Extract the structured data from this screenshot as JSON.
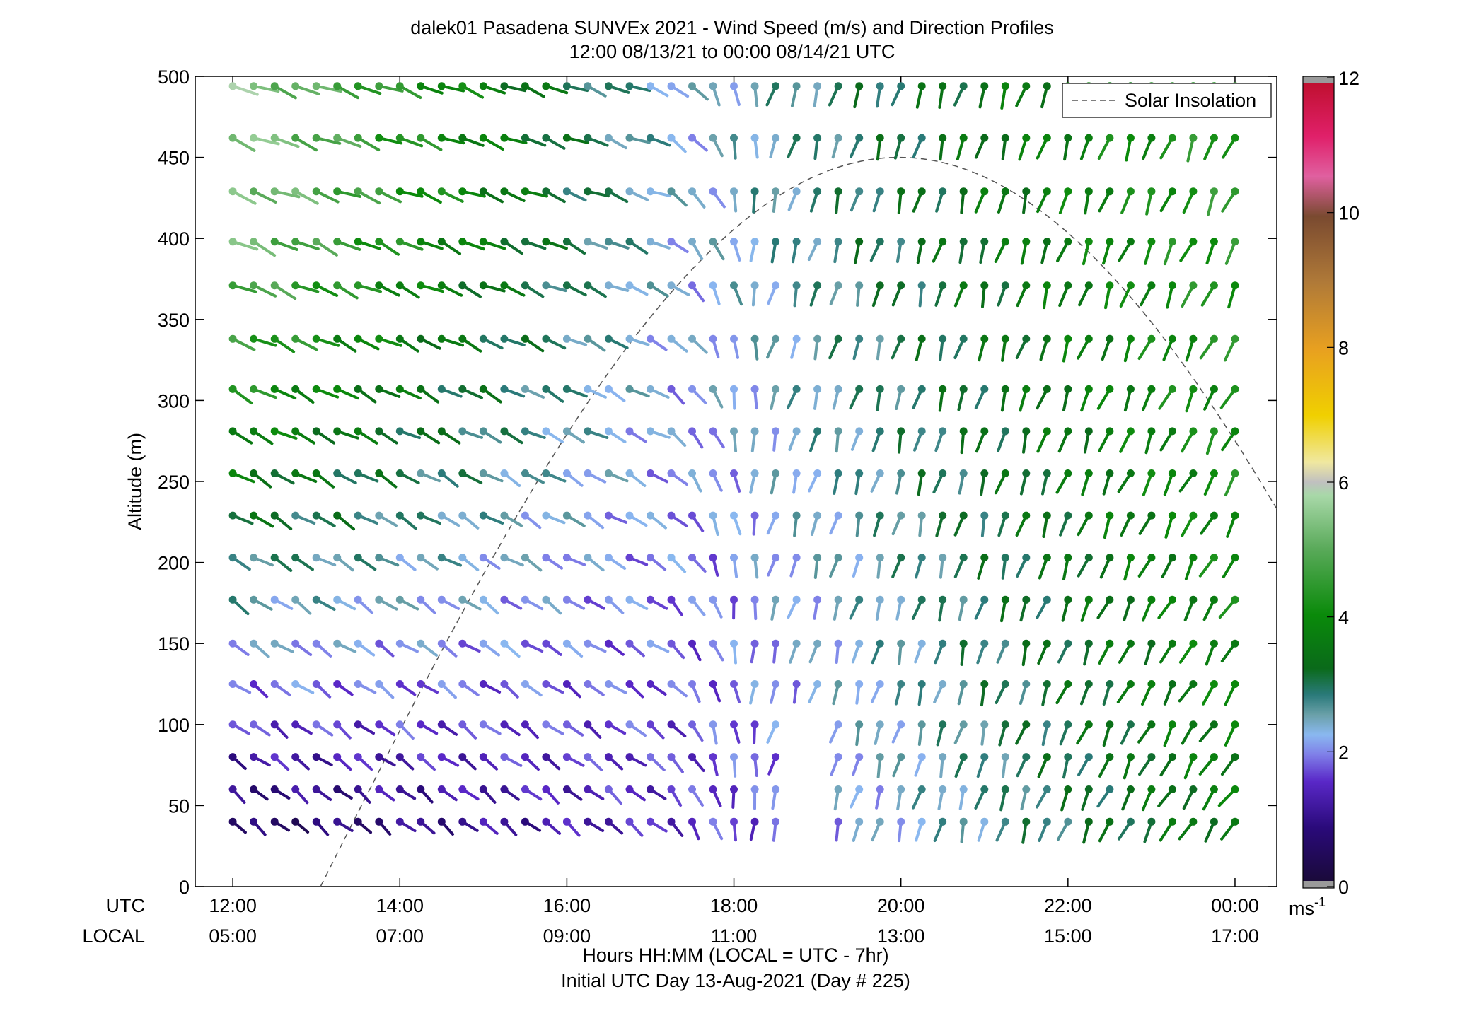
{
  "chart_data": {
    "type": "wind-barb-profile",
    "title_line1": "dalek01 Pasadena SUNVEx 2021 - Wind Speed (m/s) and Direction Profiles",
    "title_line2": "12:00 08/13/21 to 00:00 08/14/21  UTC",
    "ylabel": "Altitude (m)",
    "xlabel_line1": "Hours HH:MM  (LOCAL = UTC - 7hr)",
    "xlabel_line2": "Initial UTC Day 13-Aug-2021 (Day # 225)",
    "row_label_utc": "UTC",
    "row_label_local": "LOCAL",
    "ylim": [
      0,
      500
    ],
    "y_ticks": [
      0,
      50,
      100,
      150,
      200,
      250,
      300,
      350,
      400,
      450,
      500
    ],
    "y_tick_labels": [
      "0",
      "50",
      "100",
      "150",
      "200",
      "250",
      "300",
      "350",
      "400",
      "450",
      "500"
    ],
    "xlim_hours": [
      11.55,
      24.5
    ],
    "x_ticks_hours": [
      12,
      14,
      16,
      18,
      20,
      22,
      24
    ],
    "x_tick_labels_utc": [
      "12:00",
      "14:00",
      "16:00",
      "18:00",
      "20:00",
      "22:00",
      "00:00"
    ],
    "x_tick_labels_local": [
      "05:00",
      "07:00",
      "09:00",
      "11:00",
      "13:00",
      "15:00",
      "17:00"
    ],
    "colorbar": {
      "range": [
        0,
        12
      ],
      "ticks": [
        0,
        2,
        4,
        6,
        8,
        10,
        12
      ],
      "tick_labels": [
        "0",
        "2",
        "4",
        "6",
        "8",
        "10",
        "12"
      ],
      "unit_base": "ms",
      "unit_exp": "-1",
      "stops": [
        [
          0.0,
          "#1a0a3a"
        ],
        [
          0.8,
          "#2a0a7a"
        ],
        [
          1.5,
          "#5a28c8"
        ],
        [
          1.9,
          "#7f7fe8"
        ],
        [
          2.2,
          "#8ab8f0"
        ],
        [
          2.5,
          "#6aa0a8"
        ],
        [
          2.8,
          "#2a7a7a"
        ],
        [
          3.2,
          "#0a6a1a"
        ],
        [
          4.0,
          "#0a8a0a"
        ],
        [
          5.0,
          "#5aaa5a"
        ],
        [
          5.8,
          "#a8d8a8"
        ],
        [
          6.0,
          "#c0c0c0"
        ],
        [
          6.3,
          "#f0e8a0"
        ],
        [
          7.0,
          "#f0d000"
        ],
        [
          8.0,
          "#e8a020"
        ],
        [
          9.0,
          "#b07a38"
        ],
        [
          10.0,
          "#7a4a30"
        ],
        [
          10.6,
          "#e060a0"
        ],
        [
          11.2,
          "#e0206a"
        ],
        [
          12.0,
          "#c01030"
        ]
      ],
      "end_caps": [
        "#9a9a9a",
        "#9a9a9a"
      ]
    },
    "legend": {
      "label": "Solar Insolation",
      "placement": "top-right",
      "style": "dashed",
      "color": "#555555"
    },
    "solar_insolation": {
      "peak_hour": 20.0,
      "peak_altitude": 450,
      "zero_hours": [
        13.05,
        26.9
      ],
      "line_end_hour": 24.5
    },
    "wind_profiles": {
      "altitudes": [
        40,
        60,
        80,
        100,
        125,
        150,
        177,
        203,
        229,
        255,
        281,
        307,
        338,
        371,
        398,
        429,
        462,
        494
      ],
      "time_start_hour": 12.0,
      "time_step_hours": 0.25,
      "n_times": 49,
      "gap_hours_low": [
        18.75,
        19.0
      ],
      "gap_max_altitude": 100,
      "speed_model": {
        "low_layer": {
          "start": 0.5,
          "mid": 1.6,
          "end": 3.6
        },
        "upper_layer": {
          "start": 5.5,
          "mid": 2.2,
          "end": 4.4
        }
      },
      "direction_model_deg": {
        "morning_upper": 110,
        "morning_low": 130,
        "transition_hour": 17.0,
        "afternoon": 195,
        "afternoon_late_upper": 215
      }
    }
  }
}
